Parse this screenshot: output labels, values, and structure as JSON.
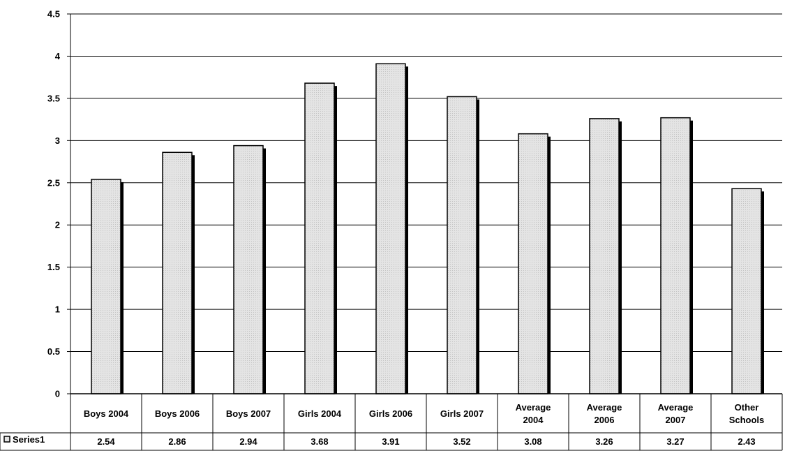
{
  "chart_data": {
    "type": "bar",
    "categories": [
      "Boys 2004",
      "Boys 2006",
      "Boys 2007",
      "Girls 2004",
      "Girls 2006",
      "Girls 2007",
      "Average 2004",
      "Average 2006",
      "Average 2007",
      "Other Schools"
    ],
    "category_lines": [
      [
        "Boys 2004"
      ],
      [
        "Boys 2006"
      ],
      [
        "Boys 2007"
      ],
      [
        "Girls 2004"
      ],
      [
        "Girls 2006"
      ],
      [
        "Girls 2007"
      ],
      [
        "Average",
        "2004"
      ],
      [
        "Average",
        "2006"
      ],
      [
        "Average",
        "2007"
      ],
      [
        "Other",
        "Schools"
      ]
    ],
    "series": [
      {
        "name": "Series1",
        "values": [
          2.54,
          2.86,
          2.94,
          3.68,
          3.91,
          3.52,
          3.08,
          3.26,
          3.27,
          2.43
        ]
      }
    ],
    "value_labels": [
      "2.54",
      "2.86",
      "2.94",
      "3.68",
      "3.91",
      "3.52",
      "3.08",
      "3.26",
      "3.27",
      "2.43"
    ],
    "yticks": [
      "0",
      "0.5",
      "1",
      "1.5",
      "2",
      "2.5",
      "3",
      "3.5",
      "4",
      "4.5"
    ],
    "ylim": [
      0,
      4.5
    ],
    "grid": true,
    "legend": "data-table-left",
    "title": "",
    "xlabel": "",
    "ylabel": "",
    "colors": {
      "bar_fill": "#e2e2e2",
      "bar_stroke": "#000000",
      "bar_shadow": "#000000",
      "grid": "#000000"
    }
  }
}
